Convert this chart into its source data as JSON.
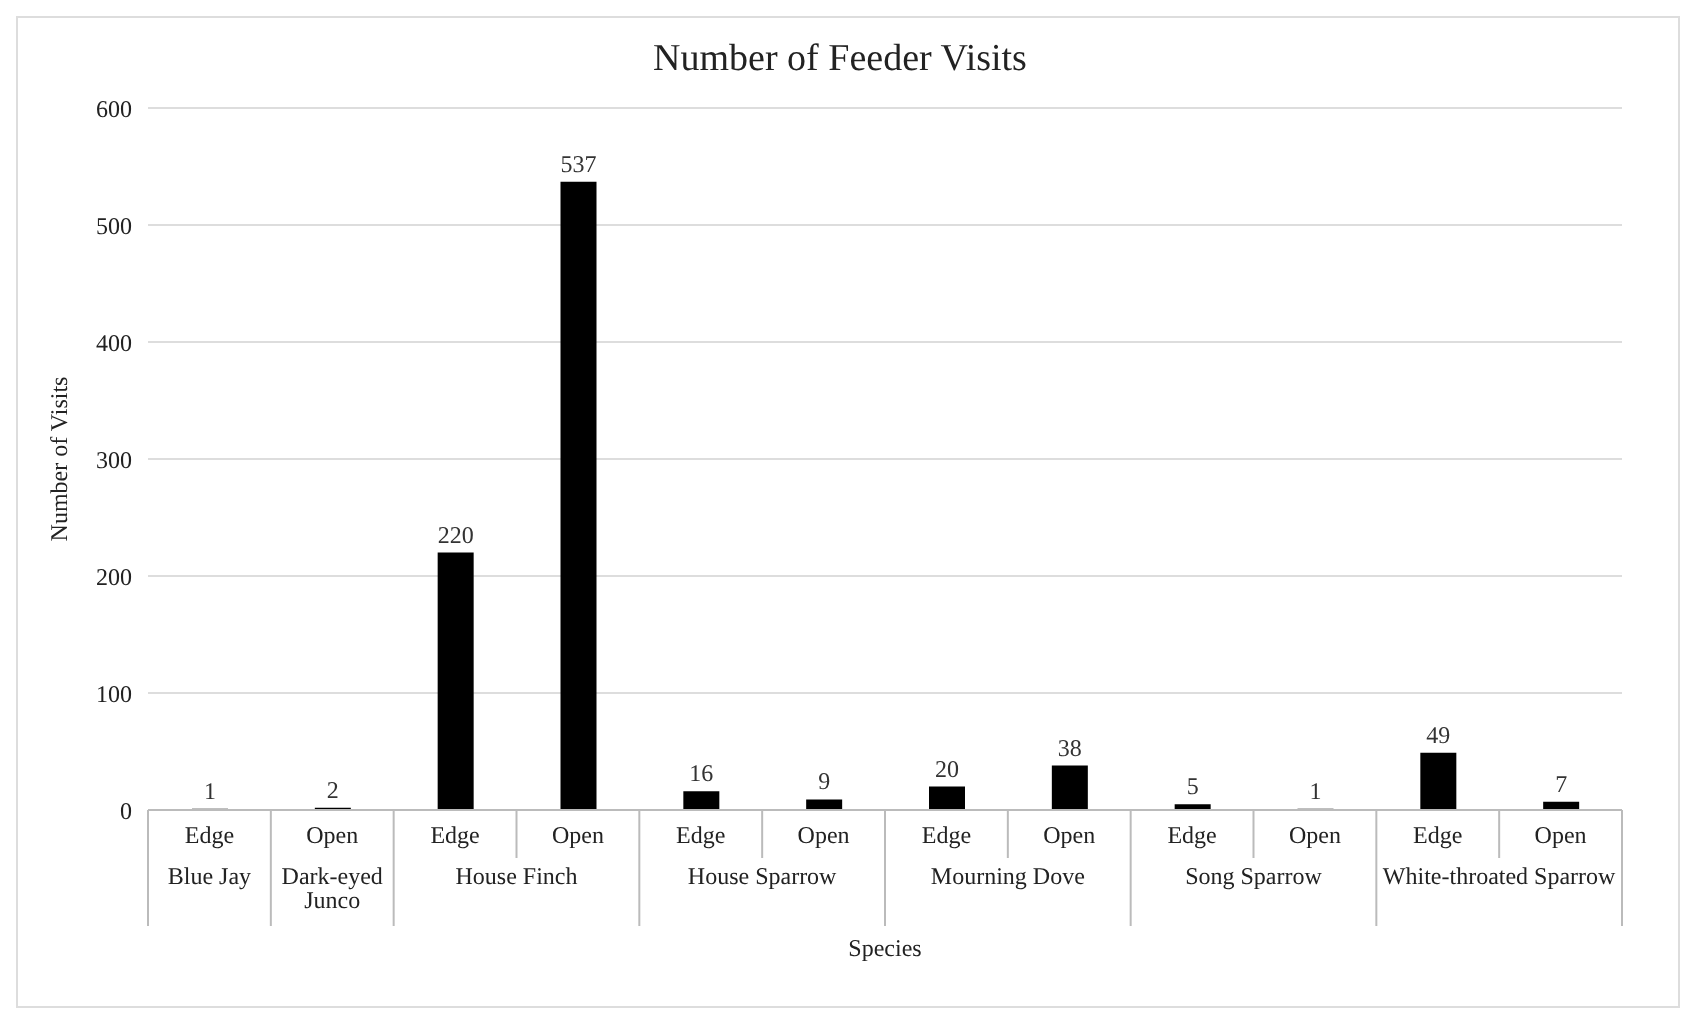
{
  "chart_data": {
    "type": "bar",
    "title": "Number of Feeder Visits",
    "xlabel": "Species",
    "ylabel": "Number of Visits",
    "categories": [
      "Blue Jay",
      "Dark-eyed Junco",
      "House Finch",
      "House Sparrow",
      "Mourning Dove",
      "Song Sparrow",
      "White-throated Sparrow"
    ],
    "series": [
      {
        "name": "Edge",
        "color": "#000000",
        "values": [
          1,
          null,
          220,
          16,
          20,
          5,
          49
        ]
      },
      {
        "name": "Open",
        "color": "#000000",
        "values": [
          null,
          2,
          537,
          9,
          38,
          1,
          7
        ]
      }
    ],
    "ylim": [
      0,
      600
    ],
    "yticks": [
      0,
      100,
      200,
      300,
      400,
      500,
      600
    ],
    "grid": "y",
    "data_labels": true
  }
}
